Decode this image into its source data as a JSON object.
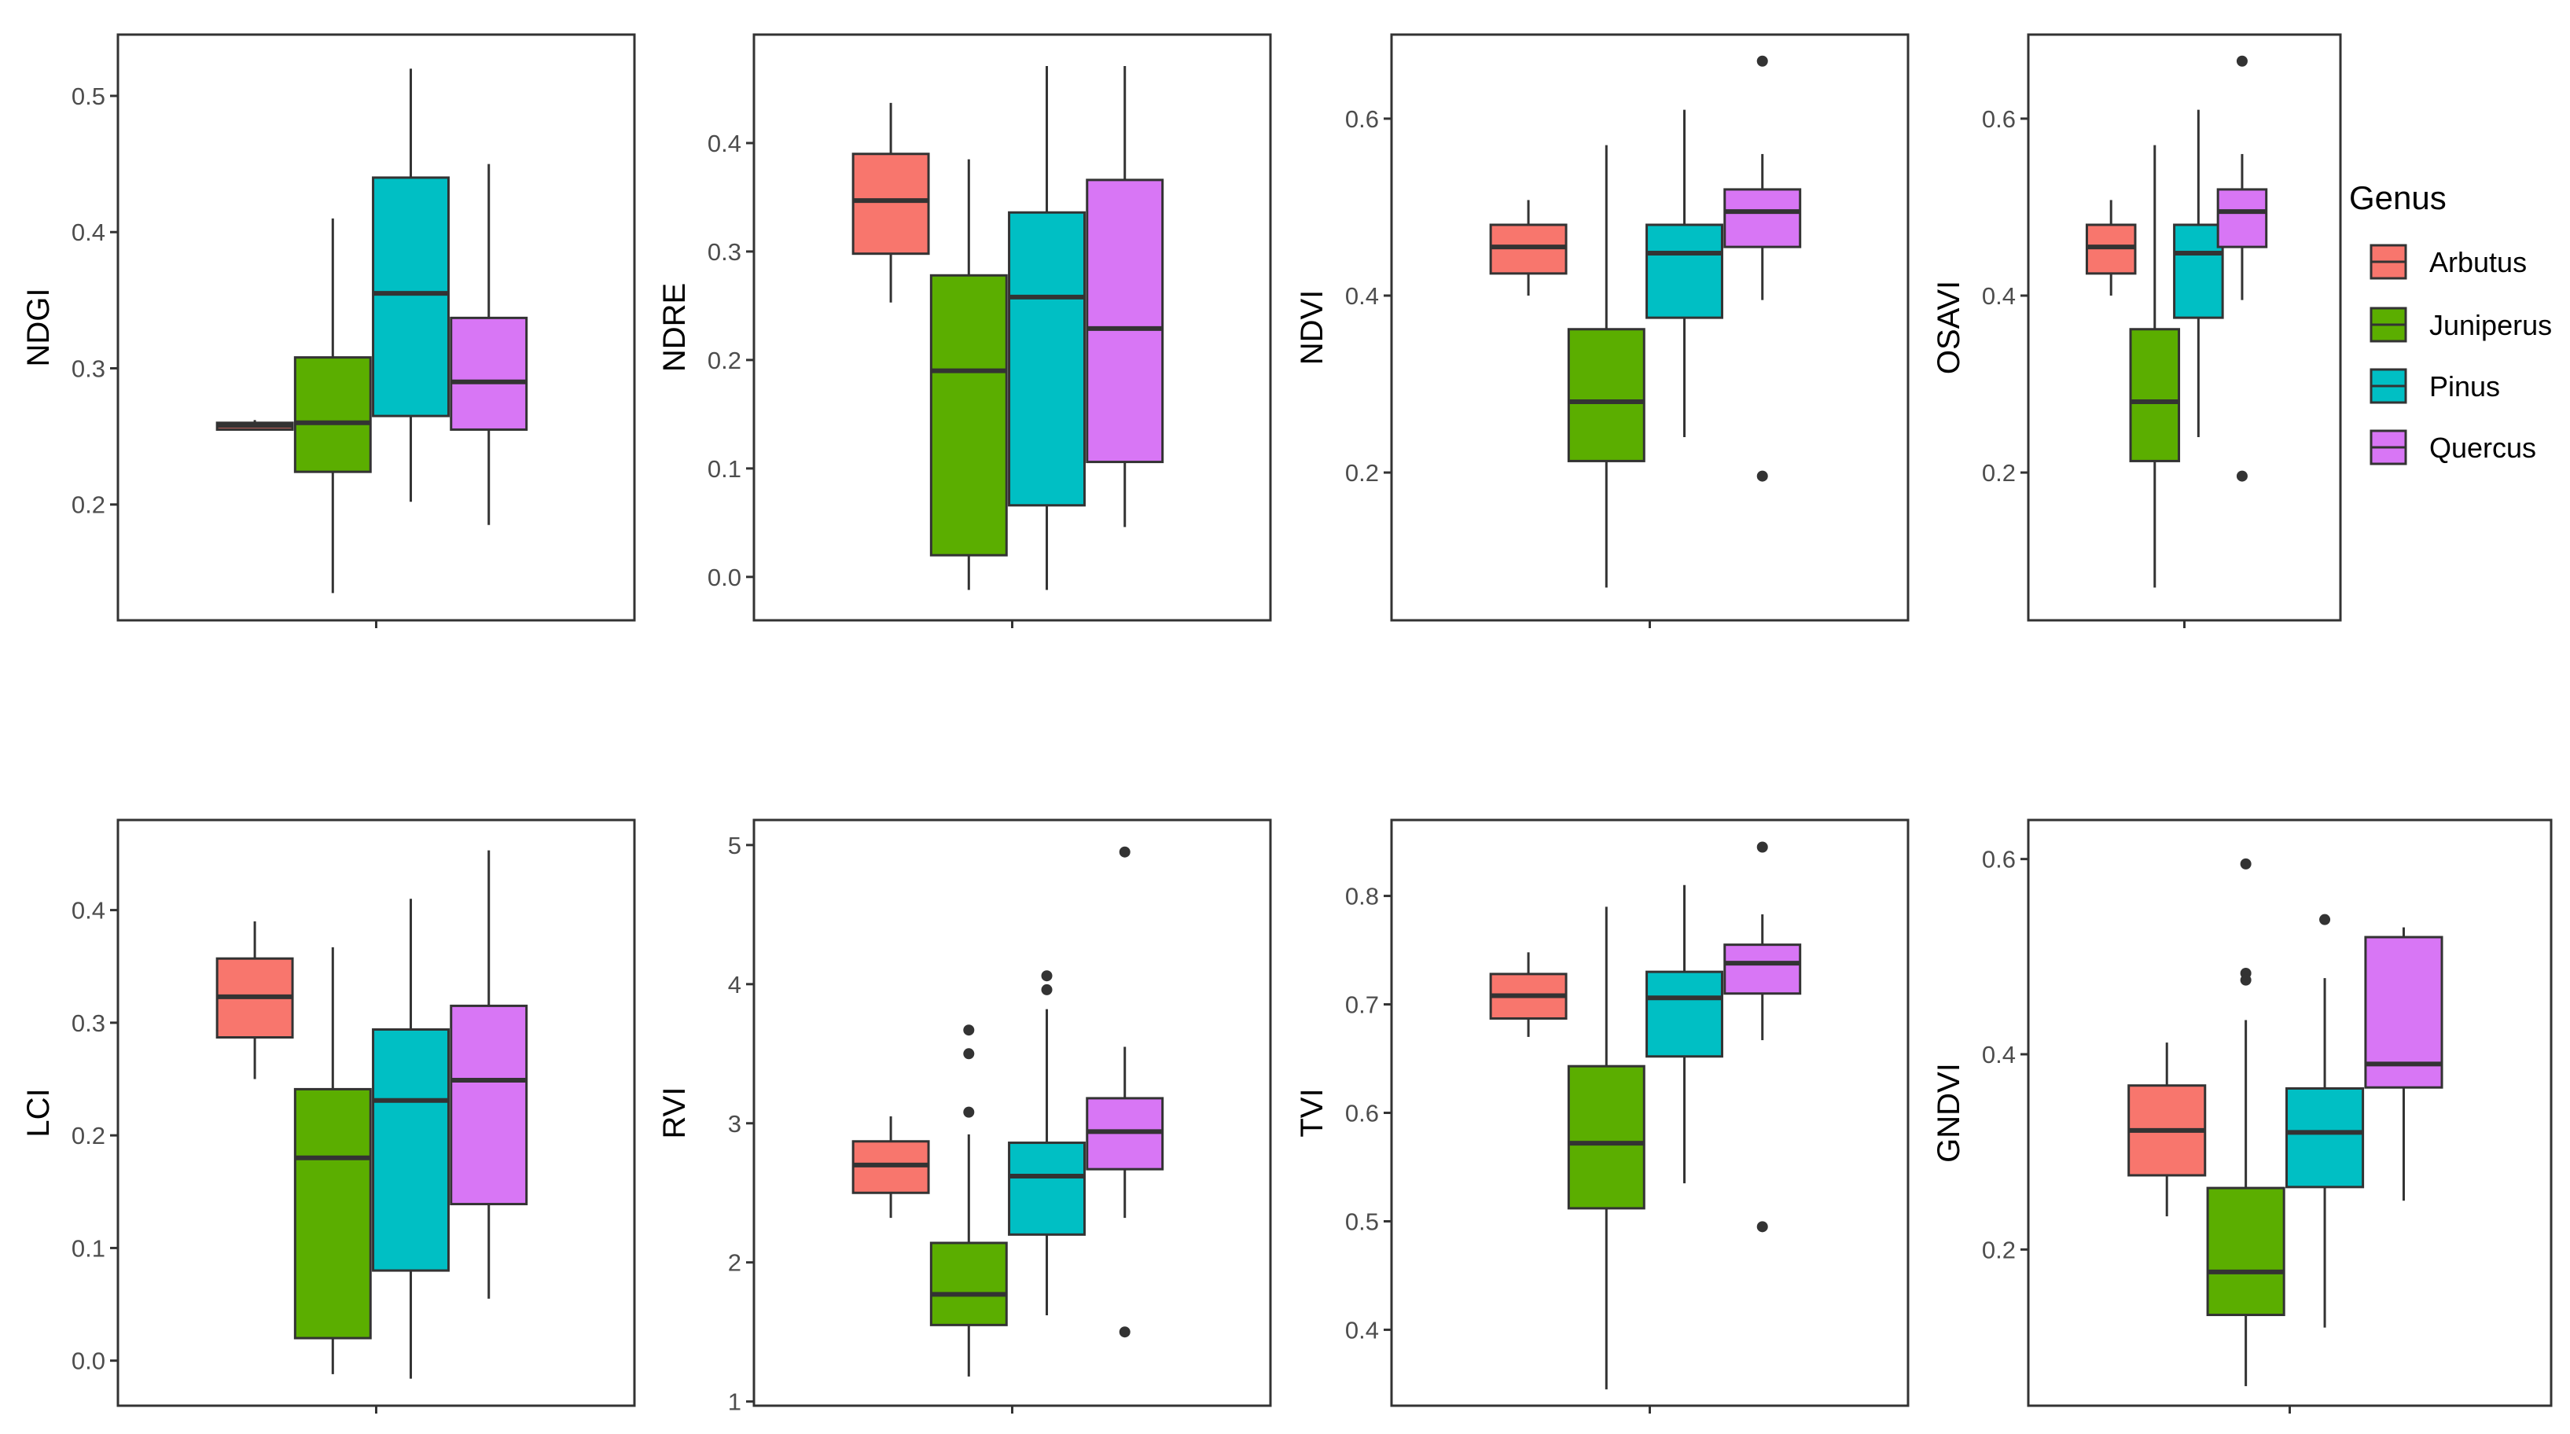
{
  "colors": {
    "Arbutus": "#F8766D",
    "Juniperus": "#5BAE00",
    "Pinus": "#00BFC4",
    "Quercus": "#D876F5"
  },
  "legend": {
    "title": "Genus",
    "items": [
      "Arbutus",
      "Juniperus",
      "Pinus",
      "Quercus"
    ]
  },
  "chart_data": [
    {
      "type": "box",
      "ylabel": "NDGI",
      "ylim": [
        0.115,
        0.545
      ],
      "ticks": [
        0.2,
        0.3,
        0.4,
        0.5
      ],
      "tick_labels": [
        "0.2",
        "0.3",
        "0.4",
        "0.5"
      ],
      "groups": [
        {
          "name": "Arbutus",
          "min": 0.255,
          "q1": 0.255,
          "median": 0.258,
          "q3": 0.26,
          "max": 0.262,
          "outliers": []
        },
        {
          "name": "Juniperus",
          "min": 0.135,
          "q1": 0.224,
          "median": 0.26,
          "q3": 0.308,
          "max": 0.41,
          "outliers": []
        },
        {
          "name": "Pinus",
          "min": 0.202,
          "q1": 0.265,
          "median": 0.355,
          "q3": 0.44,
          "max": 0.52,
          "outliers": []
        },
        {
          "name": "Quercus",
          "min": 0.185,
          "q1": 0.255,
          "median": 0.29,
          "q3": 0.337,
          "max": 0.45,
          "outliers": []
        }
      ]
    },
    {
      "type": "box",
      "ylabel": "NDRE",
      "ylim": [
        -0.04,
        0.5
      ],
      "ticks": [
        0.0,
        0.1,
        0.2,
        0.3,
        0.4
      ],
      "tick_labels": [
        "0.0",
        "0.1",
        "0.2",
        "0.3",
        "0.4"
      ],
      "groups": [
        {
          "name": "Arbutus",
          "min": 0.253,
          "q1": 0.298,
          "median": 0.347,
          "q3": 0.39,
          "max": 0.437,
          "outliers": []
        },
        {
          "name": "Juniperus",
          "min": -0.012,
          "q1": 0.02,
          "median": 0.19,
          "q3": 0.278,
          "max": 0.385,
          "outliers": []
        },
        {
          "name": "Pinus",
          "min": -0.012,
          "q1": 0.066,
          "median": 0.258,
          "q3": 0.336,
          "max": 0.471,
          "outliers": []
        },
        {
          "name": "Quercus",
          "min": 0.046,
          "q1": 0.106,
          "median": 0.229,
          "q3": 0.366,
          "max": 0.471,
          "outliers": []
        }
      ]
    },
    {
      "type": "box",
      "ylabel": "NDVI",
      "ylim": [
        0.033,
        0.695
      ],
      "ticks": [
        0.2,
        0.4,
        0.6
      ],
      "tick_labels": [
        "0.2",
        "0.4",
        "0.6"
      ],
      "groups": [
        {
          "name": "Arbutus",
          "min": 0.4,
          "q1": 0.425,
          "median": 0.455,
          "q3": 0.48,
          "max": 0.508,
          "outliers": []
        },
        {
          "name": "Juniperus",
          "min": 0.07,
          "q1": 0.213,
          "median": 0.28,
          "q3": 0.362,
          "max": 0.57,
          "outliers": []
        },
        {
          "name": "Pinus",
          "min": 0.24,
          "q1": 0.375,
          "median": 0.448,
          "q3": 0.48,
          "max": 0.61,
          "outliers": []
        },
        {
          "name": "Quercus",
          "min": 0.395,
          "q1": 0.455,
          "median": 0.495,
          "q3": 0.52,
          "max": 0.56,
          "outliers": [
            0.665,
            0.196
          ]
        }
      ]
    },
    {
      "type": "box",
      "ylabel": "OSAVI",
      "ylim": [
        0.033,
        0.695
      ],
      "ticks": [
        0.2,
        0.4,
        0.6
      ],
      "tick_labels": [
        "0.2",
        "0.4",
        "0.6"
      ],
      "groups": [
        {
          "name": "Arbutus",
          "min": 0.4,
          "q1": 0.425,
          "median": 0.455,
          "q3": 0.48,
          "max": 0.508,
          "outliers": []
        },
        {
          "name": "Juniperus",
          "min": 0.07,
          "q1": 0.213,
          "median": 0.28,
          "q3": 0.362,
          "max": 0.57,
          "outliers": []
        },
        {
          "name": "Pinus",
          "min": 0.24,
          "q1": 0.375,
          "median": 0.448,
          "q3": 0.48,
          "max": 0.61,
          "outliers": []
        },
        {
          "name": "Quercus",
          "min": 0.395,
          "q1": 0.455,
          "median": 0.495,
          "q3": 0.52,
          "max": 0.56,
          "outliers": [
            0.665,
            0.196
          ]
        }
      ]
    },
    {
      "type": "box",
      "ylabel": "LCI",
      "ylim": [
        -0.04,
        0.48
      ],
      "ticks": [
        0.0,
        0.1,
        0.2,
        0.3,
        0.4
      ],
      "tick_labels": [
        "0.0",
        "0.1",
        "0.2",
        "0.3",
        "0.4"
      ],
      "groups": [
        {
          "name": "Arbutus",
          "min": 0.25,
          "q1": 0.287,
          "median": 0.323,
          "q3": 0.357,
          "max": 0.39,
          "outliers": []
        },
        {
          "name": "Juniperus",
          "min": -0.012,
          "q1": 0.02,
          "median": 0.18,
          "q3": 0.241,
          "max": 0.367,
          "outliers": []
        },
        {
          "name": "Pinus",
          "min": -0.016,
          "q1": 0.08,
          "median": 0.231,
          "q3": 0.294,
          "max": 0.41,
          "outliers": []
        },
        {
          "name": "Quercus",
          "min": 0.055,
          "q1": 0.139,
          "median": 0.249,
          "q3": 0.315,
          "max": 0.453,
          "outliers": []
        }
      ]
    },
    {
      "type": "box",
      "ylabel": "RVI",
      "ylim": [
        0.97,
        5.18
      ],
      "ticks": [
        1,
        2,
        3,
        4,
        5
      ],
      "tick_labels": [
        "1",
        "2",
        "3",
        "4",
        "5"
      ],
      "groups": [
        {
          "name": "Arbutus",
          "min": 2.32,
          "q1": 2.5,
          "median": 2.7,
          "q3": 2.87,
          "max": 3.05,
          "outliers": []
        },
        {
          "name": "Juniperus",
          "min": 1.18,
          "q1": 1.55,
          "median": 1.77,
          "q3": 2.14,
          "max": 2.92,
          "outliers": [
            3.67,
            3.5,
            3.08
          ]
        },
        {
          "name": "Pinus",
          "min": 1.62,
          "q1": 2.2,
          "median": 2.62,
          "q3": 2.86,
          "max": 3.82,
          "outliers": [
            4.06,
            3.96
          ]
        },
        {
          "name": "Quercus",
          "min": 2.32,
          "q1": 2.67,
          "median": 2.94,
          "q3": 3.18,
          "max": 3.55,
          "outliers": [
            4.95,
            1.5
          ]
        }
      ]
    },
    {
      "type": "box",
      "ylabel": "TVI",
      "ylim": [
        0.33,
        0.87
      ],
      "ticks": [
        0.4,
        0.5,
        0.6,
        0.7,
        0.8
      ],
      "tick_labels": [
        "0.4",
        "0.5",
        "0.6",
        "0.7",
        "0.8"
      ],
      "groups": [
        {
          "name": "Arbutus",
          "min": 0.67,
          "q1": 0.687,
          "median": 0.708,
          "q3": 0.728,
          "max": 0.748,
          "outliers": []
        },
        {
          "name": "Juniperus",
          "min": 0.345,
          "q1": 0.512,
          "median": 0.572,
          "q3": 0.643,
          "max": 0.79,
          "outliers": []
        },
        {
          "name": "Pinus",
          "min": 0.535,
          "q1": 0.652,
          "median": 0.706,
          "q3": 0.73,
          "max": 0.81,
          "outliers": []
        },
        {
          "name": "Quercus",
          "min": 0.667,
          "q1": 0.71,
          "median": 0.738,
          "q3": 0.755,
          "max": 0.783,
          "outliers": [
            0.845,
            0.495
          ]
        }
      ]
    },
    {
      "type": "box",
      "ylabel": "GNDVI",
      "ylim": [
        0.04,
        0.64
      ],
      "ticks": [
        0.2,
        0.4,
        0.6
      ],
      "tick_labels": [
        "0.2",
        "0.4",
        "0.6"
      ],
      "groups": [
        {
          "name": "Arbutus",
          "min": 0.234,
          "q1": 0.276,
          "median": 0.322,
          "q3": 0.368,
          "max": 0.412,
          "outliers": []
        },
        {
          "name": "Juniperus",
          "min": 0.06,
          "q1": 0.133,
          "median": 0.177,
          "q3": 0.263,
          "max": 0.435,
          "outliers": [
            0.595,
            0.483,
            0.476
          ]
        },
        {
          "name": "Pinus",
          "min": 0.12,
          "q1": 0.264,
          "median": 0.32,
          "q3": 0.365,
          "max": 0.478,
          "outliers": [
            0.538
          ]
        },
        {
          "name": "Quercus",
          "min": 0.25,
          "q1": 0.366,
          "median": 0.39,
          "q3": 0.52,
          "max": 0.53,
          "outliers": []
        }
      ]
    }
  ]
}
